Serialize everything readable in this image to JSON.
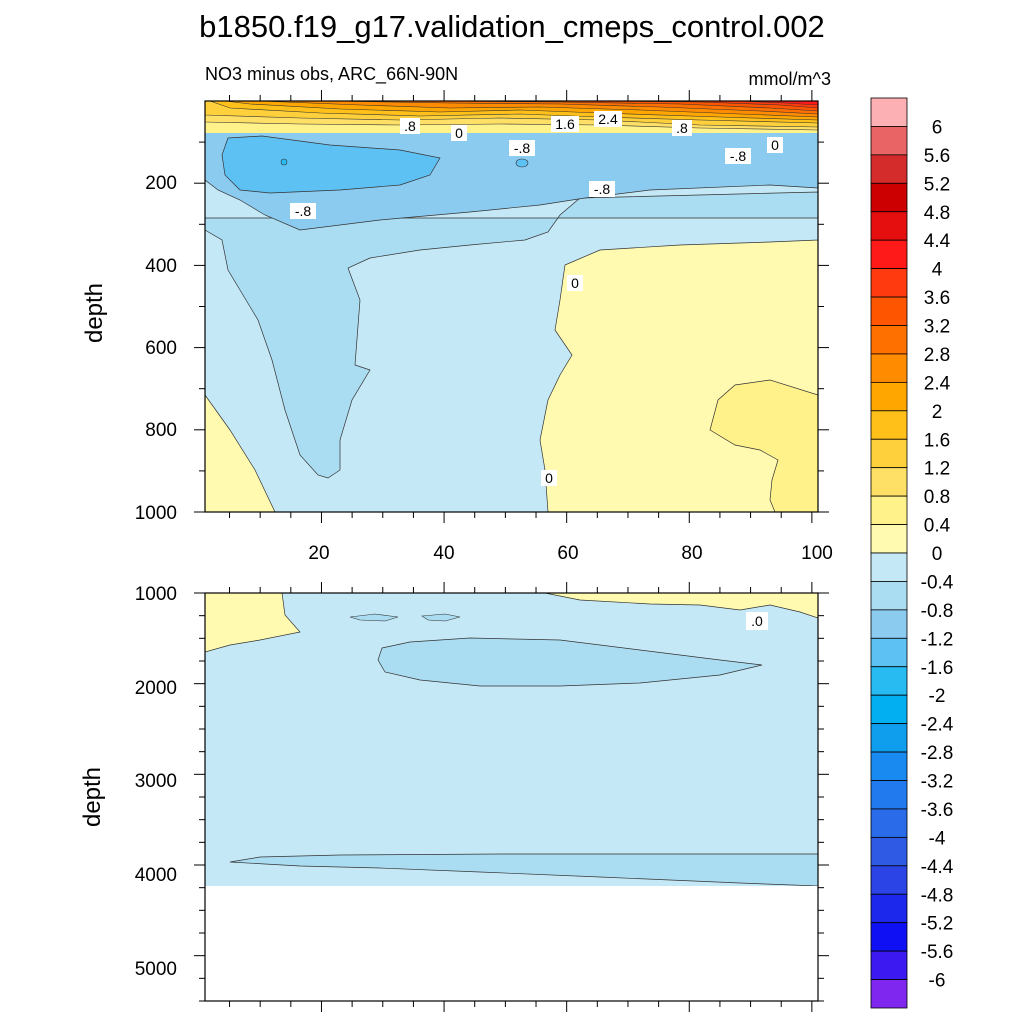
{
  "chart_data": {
    "type": "heatmap",
    "title": "b1850.f19_g17.validation_cmeps_control.002",
    "panels": [
      {
        "name": "upper",
        "left_label": "NO3 minus obs, ARC_66N-90N",
        "right_label": "mmol/m^3",
        "ylabel": "depth",
        "ylim": [
          0,
          1000
        ],
        "y_inverted": true,
        "xlim": [
          1,
          101
        ],
        "y_ticks": [
          "200",
          "400",
          "600",
          "800",
          "1000"
        ],
        "x_ticks": [
          "20",
          "40",
          "60",
          "80",
          "100"
        ],
        "contour_labels": [
          ".8",
          "0",
          "1.6",
          "2.4",
          ".8",
          "-.8",
          "-.8",
          "0",
          "-.8",
          "-.8",
          "0",
          "0"
        ]
      },
      {
        "name": "lower",
        "ylabel": "depth",
        "ylim": [
          1000,
          5500
        ],
        "y_inverted": true,
        "xlim": [
          1,
          101
        ],
        "y_ticks": [
          "1000",
          "2000",
          "3000",
          "4000",
          "5000"
        ],
        "data_bottom_depth": 4130,
        "contour_labels": [
          ".0"
        ]
      }
    ],
    "colorbar": {
      "levels": [
        "6",
        "5.6",
        "5.2",
        "4.8",
        "4.4",
        "4",
        "3.6",
        "3.2",
        "2.8",
        "2.4",
        "2",
        "1.6",
        "1.2",
        "0.8",
        "0.4",
        "0",
        "-0.4",
        "-0.8",
        "-1.2",
        "-1.6",
        "-2",
        "-2.4",
        "-2.8",
        "-3.2",
        "-3.6",
        "-4",
        "-4.4",
        "-4.8",
        "-5.2",
        "-5.6",
        "-6"
      ],
      "colors": [
        "#fdb0b3",
        "#e96565",
        "#d42b2b",
        "#cc0000",
        "#e60f10",
        "#ff1a1a",
        "#ff3a0e",
        "#fe5500",
        "#fe7000",
        "#ff8b00",
        "#ffa600",
        "#ffc01a",
        "#fed13c",
        "#ffe066",
        "#fff28a",
        "#fffab0",
        "#c5e8f6",
        "#aadcf2",
        "#8ccbf0",
        "#5ec1f3",
        "#27bbf2",
        "#02b0f1",
        "#0f9dee",
        "#198aef",
        "#217bef",
        "#2a6be9",
        "#2f5ae3",
        "#2a44e5",
        "#1c29ec",
        "#1010f5",
        "#3b19f0",
        "#7f27ef"
      ]
    }
  }
}
